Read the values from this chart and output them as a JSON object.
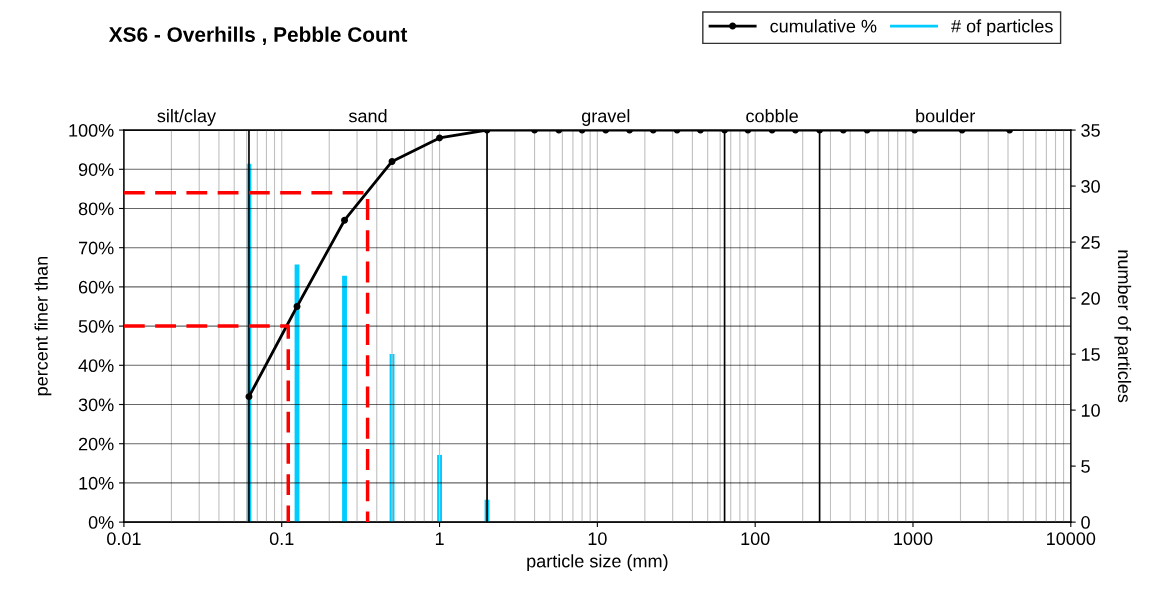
{
  "chart_data": {
    "type": "line",
    "title": "XS6 - Overhills , Pebble Count",
    "xlabel": "particle size (mm)",
    "ylabel": "percent finer than",
    "y2label": "number of particles",
    "log": "x",
    "grid": true,
    "legend": "top right",
    "xlim": [
      0.01,
      10000
    ],
    "xticks": [
      0.01,
      0.1,
      1,
      10,
      100,
      1000,
      10000
    ],
    "ylim": [
      0,
      100
    ],
    "yticks": [
      {
        "value": 0,
        "label": "0%"
      },
      {
        "value": 10,
        "label": "10%"
      },
      {
        "value": 20,
        "label": "20%"
      },
      {
        "value": 30,
        "label": "30%"
      },
      {
        "value": 40,
        "label": "40%"
      },
      {
        "value": 50,
        "label": "50%"
      },
      {
        "value": 60,
        "label": "60%"
      },
      {
        "value": 70,
        "label": "70%"
      },
      {
        "value": 80,
        "label": "80%"
      },
      {
        "value": 90,
        "label": "90%"
      },
      {
        "value": 100,
        "label": "100%"
      }
    ],
    "y2lim": [
      0,
      35
    ],
    "y2ticks": [
      0,
      5,
      10,
      15,
      20,
      25,
      30,
      35
    ],
    "series": [
      {
        "name": "# of particles",
        "type": "bar",
        "axis": "y2",
        "color": "#00ccff",
        "x": [
          0.062,
          0.125,
          0.25,
          0.5,
          1,
          2,
          4,
          5.7,
          8,
          11.3,
          16,
          22.6,
          32,
          45,
          64,
          90,
          128,
          180,
          256,
          362,
          512,
          1024,
          2048,
          4096
        ],
        "values": [
          32,
          23,
          22,
          15,
          6,
          2,
          0,
          0,
          0,
          0,
          0,
          0,
          0,
          0,
          0,
          0,
          0,
          0,
          0,
          0,
          0,
          0,
          0,
          0
        ]
      },
      {
        "name": "cumulative %",
        "color": "#000000",
        "marker": "circle",
        "line_style": "solid",
        "x": [
          0.062,
          0.125,
          0.25,
          0.5,
          1,
          2,
          4,
          5.7,
          8,
          11.3,
          16,
          22.6,
          32,
          45,
          64,
          90,
          128,
          180,
          256,
          362,
          512,
          1024,
          2048,
          4096
        ],
        "values": [
          32,
          55,
          77,
          92,
          98,
          100,
          100,
          100,
          100,
          100,
          100,
          100,
          100,
          100,
          100,
          100,
          100,
          100,
          100,
          100,
          100,
          100,
          100,
          100
        ]
      },
      {
        "color": "#ff0000",
        "line_style": "dashed",
        "marker": "none",
        "x": [
          0.01,
          0.11,
          0.11
        ],
        "values": [
          50,
          50,
          0
        ]
      },
      {
        "color": "#ff0000",
        "line_style": "dashed",
        "marker": "none",
        "x": [
          0.01,
          0.35,
          0.35
        ],
        "values": [
          84,
          84,
          0
        ]
      }
    ],
    "ref_lines": [
      {
        "axis": "x",
        "value": 0.062,
        "color": "#000000"
      },
      {
        "axis": "x",
        "value": 2,
        "color": "#000000"
      },
      {
        "axis": "x",
        "value": 64,
        "color": "#000000"
      },
      {
        "axis": "x",
        "value": 256,
        "color": "#000000"
      }
    ],
    "annotations": [
      "silt/clay",
      "sand",
      "gravel",
      "cobble",
      "boulder"
    ]
  }
}
